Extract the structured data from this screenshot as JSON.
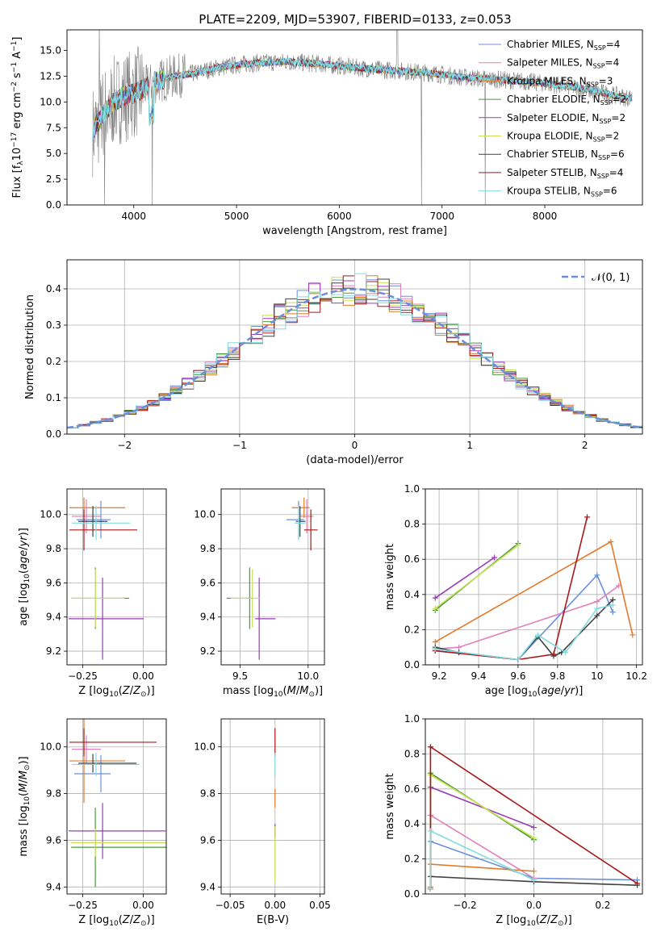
{
  "figure_title": "PLATE=2209, MJD=53907, FIBERID=0133, z=0.053",
  "colors": {
    "chabrier_miles": "#6a8fdc",
    "salpeter_miles": "#e080b8",
    "kroupa_miles": "#e07a2a",
    "chabrier_elodie": "#4a9a3a",
    "salpeter_elodie": "#9a3ab8",
    "kroupa_elodie": "#c8e050",
    "chabrier_stelib": "#404040",
    "salpeter_stelib": "#a81818",
    "kroupa_stelib": "#80dce0",
    "data": "#808080"
  },
  "chart_data": [
    {
      "id": "spectrum",
      "type": "line",
      "title": "PLATE=2209, MJD=53907, FIBERID=0133, z=0.053",
      "xlabel": "wavelength [Angstrom, rest frame]",
      "ylabel": "Flux [f_λ 10^-17 erg cm^-2 s^-1 A^-1]",
      "xlim": [
        3350,
        8950
      ],
      "ylim": [
        0,
        17
      ],
      "xticks": [
        4000,
        5000,
        6000,
        7000,
        8000
      ],
      "yticks": [
        0.0,
        2.5,
        5.0,
        7.5,
        10.0,
        12.5,
        15.0
      ],
      "grid": false,
      "legend_position": "top-right",
      "legend": [
        {
          "label": "Chabrier MILES, N",
          "sub": "SSP",
          "suffix": "=4",
          "color_key": "chabrier_miles"
        },
        {
          "label": "Salpeter MILES, N",
          "sub": "SSP",
          "suffix": "=4",
          "color_key": "salpeter_miles"
        },
        {
          "label": "Kroupa MILES, N",
          "sub": "SSP",
          "suffix": "=3",
          "color_key": "kroupa_miles"
        },
        {
          "label": "Chabrier ELODIE, N",
          "sub": "SSP",
          "suffix": "=2",
          "color_key": "chabrier_elodie"
        },
        {
          "label": "Salpeter ELODIE, N",
          "sub": "SSP",
          "suffix": "=2",
          "color_key": "salpeter_elodie"
        },
        {
          "label": "Kroupa ELODIE, N",
          "sub": "SSP",
          "suffix": "=2",
          "color_key": "kroupa_elodie"
        },
        {
          "label": "Chabrier STELIB, N",
          "sub": "SSP",
          "suffix": "=6",
          "color_key": "chabrier_stelib"
        },
        {
          "label": "Salpeter STELIB, N",
          "sub": "SSP",
          "suffix": "=4",
          "color_key": "salpeter_stelib"
        },
        {
          "label": "Kroupa STELIB, N",
          "sub": "SSP",
          "suffix": "=6",
          "color_key": "kroupa_stelib"
        }
      ],
      "continuum": [
        [
          3600,
          7.2
        ],
        [
          3700,
          8.8
        ],
        [
          3800,
          10.0
        ],
        [
          3900,
          10.5
        ],
        [
          4000,
          10.8
        ],
        [
          4100,
          11.3
        ],
        [
          4200,
          11.9
        ],
        [
          4400,
          12.5
        ],
        [
          4600,
          12.8
        ],
        [
          4800,
          13.3
        ],
        [
          5000,
          13.6
        ],
        [
          5200,
          13.8
        ],
        [
          5500,
          13.9
        ],
        [
          5800,
          13.7
        ],
        [
          6000,
          13.5
        ],
        [
          6300,
          13.2
        ],
        [
          6600,
          13.0
        ],
        [
          6900,
          12.8
        ],
        [
          7200,
          12.4
        ],
        [
          7500,
          12.2
        ],
        [
          7800,
          12.0
        ],
        [
          8000,
          11.8
        ],
        [
          8300,
          11.4
        ],
        [
          8600,
          10.8
        ],
        [
          8800,
          10.4
        ]
      ]
    },
    {
      "id": "residuals",
      "type": "histogram",
      "xlabel": "(data-model)/error",
      "ylabel": "Normed distribution",
      "xlim": [
        -2.5,
        2.5
      ],
      "ylim": [
        0,
        0.48
      ],
      "xticks": [
        -2,
        -1,
        0,
        1,
        2
      ],
      "yticks": [
        0.0,
        0.1,
        0.2,
        0.3,
        0.4
      ],
      "grid": true,
      "legend_position": "top-right",
      "legend": [
        {
          "label": "𝒩(0, 1)",
          "color_key": "chabrier_miles",
          "dashed": true
        }
      ],
      "bin_width": 0.1
    },
    {
      "id": "age_vs_Z",
      "type": "errorbar",
      "xlabel": "Z [log10(Z/Z⊙)]",
      "ylabel": "age [log10(age/yr)]",
      "xlim": [
        -0.315,
        0.095
      ],
      "ylim": [
        9.12,
        10.15
      ],
      "xticks": [
        -0.25,
        0.0
      ],
      "xticklabels": [
        "−0.25",
        "0.00"
      ],
      "yticks": [
        9.2,
        9.4,
        9.6,
        9.8,
        10.0
      ],
      "grid": true,
      "points": [
        {
          "series": "chabrier_miles",
          "x": -0.175,
          "y": 9.97,
          "xerr": [
            0.1,
            0.04
          ],
          "yerr": 0.11
        },
        {
          "series": "salpeter_miles",
          "x": -0.235,
          "y": 9.99,
          "xerr": [
            0.06,
            0.06
          ],
          "yerr": 0.1
        },
        {
          "series": "kroupa_miles",
          "x": -0.245,
          "y": 10.04,
          "xerr": [
            0.06,
            0.17
          ],
          "yerr": 0.06
        },
        {
          "series": "chabrier_elodie",
          "x": -0.198,
          "y": 9.51,
          "xerr": [
            0.1,
            0.14
          ],
          "yerr": 0.18
        },
        {
          "series": "salpeter_elodie",
          "x": -0.168,
          "y": 9.39,
          "xerr": [
            0.14,
            0.17
          ],
          "yerr": 0.24
        },
        {
          "series": "kroupa_elodie",
          "x": -0.198,
          "y": 9.51,
          "xerr": [
            0.1,
            0.12
          ],
          "yerr": 0.17
        },
        {
          "series": "chabrier_stelib",
          "x": -0.208,
          "y": 9.96,
          "xerr": [
            0.06,
            0.06
          ],
          "yerr": 0.09
        },
        {
          "series": "salpeter_stelib",
          "x": -0.245,
          "y": 9.91,
          "xerr": [
            0.06,
            0.22
          ],
          "yerr": 0.12
        },
        {
          "series": "kroupa_stelib",
          "x": -0.195,
          "y": 9.95,
          "xerr": [
            0.1,
            0.14
          ],
          "yerr": 0.1
        }
      ]
    },
    {
      "id": "age_vs_mass",
      "type": "errorbar",
      "xlabel": "mass [log10(M/M⊙)]",
      "xlim": [
        9.36,
        10.12
      ],
      "ylim": [
        9.12,
        10.15
      ],
      "xticks": [
        9.5,
        10.0
      ],
      "xticklabels": [
        "9.5",
        "10.0"
      ],
      "yticks": [
        9.2,
        9.4,
        9.6,
        9.8,
        10.0
      ],
      "grid": true,
      "points": [
        {
          "series": "chabrier_miles",
          "x": 9.93,
          "y": 9.97,
          "xerr": [
            0.09,
            0.04
          ],
          "yerr": 0.11
        },
        {
          "series": "salpeter_miles",
          "x": 9.99,
          "y": 9.99,
          "xerr": [
            0.05,
            0.05
          ],
          "yerr": 0.1
        },
        {
          "series": "kroupa_miles",
          "x": 9.97,
          "y": 10.04,
          "xerr": [
            0.09,
            0.04
          ],
          "yerr": 0.06
        },
        {
          "series": "chabrier_elodie",
          "x": 9.57,
          "y": 9.51,
          "xerr": [
            0.17,
            0.03
          ],
          "yerr": 0.18
        },
        {
          "series": "salpeter_elodie",
          "x": 9.64,
          "y": 9.39,
          "xerr": [
            0.03,
            0.12
          ],
          "yerr": 0.24
        },
        {
          "series": "kroupa_elodie",
          "x": 9.59,
          "y": 9.51,
          "xerr": [
            0.16,
            0.06
          ],
          "yerr": 0.17
        },
        {
          "series": "chabrier_stelib",
          "x": 9.94,
          "y": 9.96,
          "xerr": [
            0.03,
            0.04
          ],
          "yerr": 0.09
        },
        {
          "series": "salpeter_stelib",
          "x": 10.02,
          "y": 9.91,
          "xerr": [
            0.05,
            0.05
          ],
          "yerr": 0.12
        },
        {
          "series": "kroupa_stelib",
          "x": 9.93,
          "y": 9.95,
          "xerr": [
            0.03,
            0.05
          ],
          "yerr": 0.1
        }
      ]
    },
    {
      "id": "weight_vs_age",
      "type": "line",
      "xlabel": "age [log10(age/yr)]",
      "ylabel": "mass weight",
      "xlim": [
        9.13,
        10.23
      ],
      "ylim": [
        0,
        1.0
      ],
      "xticks": [
        9.2,
        9.4,
        9.6,
        9.8,
        10.0,
        10.2
      ],
      "yticks": [
        0.0,
        0.2,
        0.4,
        0.6,
        0.8,
        1.0
      ],
      "grid": true,
      "series": [
        {
          "name": "chabrier_miles",
          "x": [
            9.18,
            9.6,
            10.0,
            10.08
          ],
          "y": [
            0.08,
            0.03,
            0.51,
            0.3
          ]
        },
        {
          "name": "salpeter_miles",
          "x": [
            9.18,
            9.3,
            10.0,
            10.11
          ],
          "y": [
            0.09,
            0.1,
            0.36,
            0.45
          ]
        },
        {
          "name": "kroupa_miles",
          "x": [
            9.18,
            10.07,
            10.18
          ],
          "y": [
            0.13,
            0.7,
            0.17
          ]
        },
        {
          "name": "chabrier_elodie",
          "x": [
            9.18,
            9.6
          ],
          "y": [
            0.31,
            0.69
          ]
        },
        {
          "name": "salpeter_elodie",
          "x": [
            9.18,
            9.48
          ],
          "y": [
            0.38,
            0.61
          ]
        },
        {
          "name": "kroupa_elodie",
          "x": [
            9.18,
            9.6
          ],
          "y": [
            0.32,
            0.68
          ]
        },
        {
          "name": "chabrier_stelib",
          "x": [
            9.18,
            9.3,
            9.6,
            9.7,
            9.78,
            9.82,
            10.0,
            10.08
          ],
          "y": [
            0.1,
            0.07,
            0.03,
            0.16,
            0.05,
            0.07,
            0.28,
            0.37
          ]
        },
        {
          "name": "salpeter_stelib",
          "x": [
            9.18,
            9.6,
            9.78,
            9.95
          ],
          "y": [
            0.08,
            0.03,
            0.06,
            0.84
          ]
        },
        {
          "name": "kroupa_stelib",
          "x": [
            9.18,
            9.6,
            9.7,
            9.84,
            10.0,
            10.08
          ],
          "y": [
            0.09,
            0.03,
            0.17,
            0.07,
            0.32,
            0.34
          ]
        }
      ]
    },
    {
      "id": "mass_vs_Z",
      "type": "errorbar",
      "xlabel": "Z [log10(Z/Z⊙)]",
      "ylabel": "mass [log10(M/M⊙)]",
      "xlim": [
        -0.315,
        0.095
      ],
      "ylim": [
        9.37,
        10.12
      ],
      "xticks": [
        -0.25,
        0.0
      ],
      "xticklabels": [
        "−0.25",
        "0.00"
      ],
      "yticks": [
        9.4,
        9.6,
        9.8,
        10.0
      ],
      "grid": true,
      "points": [
        {
          "series": "chabrier_miles",
          "x": -0.175,
          "y": 9.885,
          "xerr": [
            0.11,
            0.04
          ],
          "yerr": 0.08
        },
        {
          "series": "salpeter_miles",
          "x": -0.235,
          "y": 9.99,
          "xerr": [
            0.06,
            0.06
          ],
          "yerr": 0.06
        },
        {
          "series": "kroupa_miles",
          "x": -0.245,
          "y": 9.94,
          "xerr": [
            0.06,
            0.17
          ],
          "yerr": 0.18
        },
        {
          "series": "chabrier_elodie",
          "x": -0.198,
          "y": 9.57,
          "xerr": [
            0.1,
            0.3
          ],
          "yerr": 0.17
        },
        {
          "series": "salpeter_elodie",
          "x": -0.168,
          "y": 9.64,
          "xerr": [
            0.14,
            0.26
          ],
          "yerr": 0.12
        },
        {
          "series": "kroupa_elodie",
          "x": -0.198,
          "y": 9.59,
          "xerr": [
            0.1,
            0.3
          ],
          "yerr": 0.06
        },
        {
          "series": "chabrier_stelib",
          "x": -0.208,
          "y": 9.93,
          "xerr": [
            0.06,
            0.18
          ],
          "yerr": 0.04
        },
        {
          "series": "salpeter_stelib",
          "x": -0.245,
          "y": 10.02,
          "xerr": [
            0.06,
            0.3
          ],
          "yerr": 0.06
        },
        {
          "series": "kroupa_stelib",
          "x": -0.195,
          "y": 9.925,
          "xerr": [
            0.1,
            0.18
          ],
          "yerr": 0.05
        }
      ]
    },
    {
      "id": "mass_vs_ebv",
      "type": "errorbar",
      "xlabel": "E(B-V)",
      "xlim": [
        -0.06,
        0.055
      ],
      "ylim": [
        9.37,
        10.12
      ],
      "xticks": [
        -0.05,
        0.0,
        0.05
      ],
      "xticklabels": [
        "−0.05",
        "0.00",
        "0.05"
      ],
      "yticks": [
        9.4,
        9.6,
        9.8,
        10.0
      ],
      "grid": true,
      "points": [
        {
          "series": "salpeter_stelib",
          "x": 0.0,
          "y": 10.02,
          "xerr": [
            0,
            0
          ],
          "yerr": 0.06
        },
        {
          "series": "kroupa_stelib",
          "x": 0.0,
          "y": 9.925,
          "xerr": [
            0,
            0
          ],
          "yerr": 0.05
        },
        {
          "series": "kroupa_miles",
          "x": 0.0,
          "y": 9.78,
          "xerr": [
            0,
            0
          ],
          "yerr": 0.04
        },
        {
          "series": "salpeter_elodie",
          "x": 0.0,
          "y": 9.64,
          "xerr": [
            0,
            0
          ],
          "yerr": 0.03
        },
        {
          "series": "kroupa_elodie",
          "x": 0.0,
          "y": 9.54,
          "xerr": [
            0,
            0
          ],
          "yerr": 0.12
        }
      ]
    },
    {
      "id": "weight_vs_Z",
      "type": "line",
      "xlabel": "Z [log10(Z/Z⊙)]",
      "ylabel": "mass weight",
      "xlim": [
        -0.315,
        0.315
      ],
      "ylim": [
        0,
        1.0
      ],
      "xticks": [
        -0.2,
        0.0,
        0.2
      ],
      "xticklabels": [
        "−0.2",
        "0.0",
        "0.2"
      ],
      "yticks": [
        0.0,
        0.2,
        0.4,
        0.6,
        0.8,
        1.0
      ],
      "grid": true,
      "series": [
        {
          "name": "chabrier_miles",
          "x": [
            -0.3,
            -0.3,
            0.0,
            0.3
          ],
          "y": [
            0.03,
            0.3,
            0.09,
            0.08
          ]
        },
        {
          "name": "salpeter_miles",
          "x": [
            -0.3,
            -0.3,
            0.0
          ],
          "y": [
            0.03,
            0.45,
            0.09
          ]
        },
        {
          "name": "kroupa_miles",
          "x": [
            -0.3,
            -0.3,
            0.0
          ],
          "y": [
            0.04,
            0.17,
            0.13
          ]
        },
        {
          "name": "chabrier_elodie",
          "x": [
            -0.3,
            -0.3,
            0.0
          ],
          "y": [
            0.03,
            0.69,
            0.31
          ]
        },
        {
          "name": "salpeter_elodie",
          "x": [
            -0.3,
            -0.3,
            0.0
          ],
          "y": [
            0.03,
            0.61,
            0.38
          ]
        },
        {
          "name": "kroupa_elodie",
          "x": [
            -0.3,
            -0.3,
            0.0
          ],
          "y": [
            0.03,
            0.68,
            0.32
          ]
        },
        {
          "name": "chabrier_stelib",
          "x": [
            -0.3,
            -0.3,
            0.0,
            0.3
          ],
          "y": [
            0.03,
            0.1,
            0.07,
            0.05
          ]
        },
        {
          "name": "salpeter_stelib",
          "x": [
            -0.3,
            -0.3,
            0.3
          ],
          "y": [
            0.03,
            0.84,
            0.06
          ]
        },
        {
          "name": "kroupa_stelib",
          "x": [
            -0.3,
            -0.3,
            0.0
          ],
          "y": [
            0.03,
            0.36,
            0.08
          ]
        }
      ]
    }
  ]
}
